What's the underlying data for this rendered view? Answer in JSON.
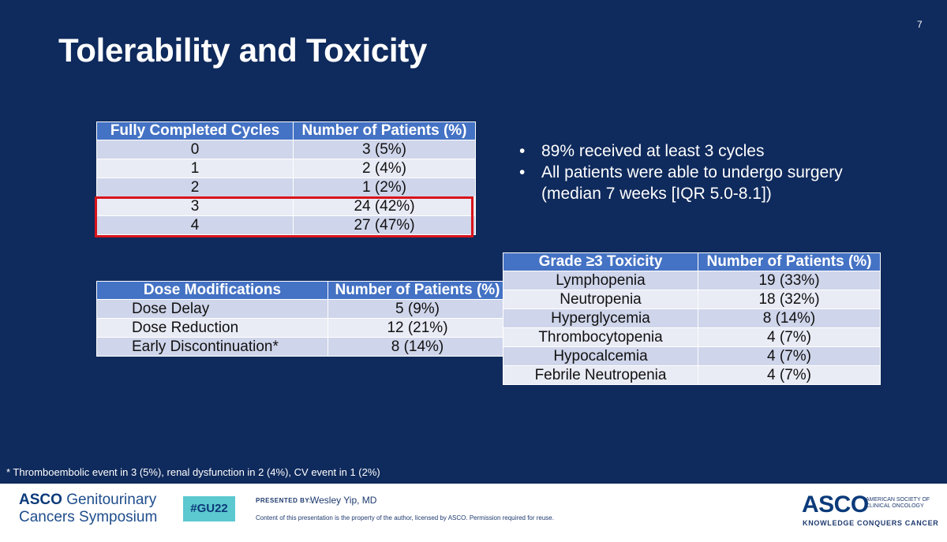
{
  "slide": {
    "number": "7",
    "title": "Tolerability and Toxicity"
  },
  "cycles_table": {
    "headers": [
      "Fully Completed Cycles",
      "Number of Patients (%)"
    ],
    "rows": [
      [
        "0",
        "3 (5%)"
      ],
      [
        "1",
        "2 (4%)"
      ],
      [
        "2",
        "1 (2%)"
      ],
      [
        "3",
        "24 (42%)"
      ],
      [
        "4",
        "27 (47%)"
      ]
    ]
  },
  "dose_table": {
    "headers": [
      "Dose Modifications",
      "Number of Patients (%)"
    ],
    "rows": [
      [
        "Dose Delay",
        "5 (9%)"
      ],
      [
        "Dose Reduction",
        "12 (21%)"
      ],
      [
        "Early Discontinuation*",
        "8 (14%)"
      ]
    ]
  },
  "toxicity_table": {
    "headers": [
      "Grade ≥3 Toxicity",
      "Number of Patients (%)"
    ],
    "rows": [
      [
        "Lymphopenia",
        "19 (33%)"
      ],
      [
        "Neutropenia",
        "18 (32%)"
      ],
      [
        "Hyperglycemia",
        "8 (14%)"
      ],
      [
        "Thrombocytopenia",
        "4 (7%)"
      ],
      [
        "Hypocalcemia",
        "4 (7%)"
      ],
      [
        "Febrile Neutropenia",
        "4 (7%)"
      ]
    ]
  },
  "bullets": {
    "marker": "•",
    "items": [
      "89% received at least 3 cycles",
      "All patients were able to undergo surgery (median 7 weeks [IQR 5.0-8.1])"
    ]
  },
  "footnote": "* Thromboembolic event in 3 (5%), renal dysfunction in 2 (4%), CV event in 1 (2%)",
  "footer": {
    "conference_asco": "ASCO",
    "conference_line1": "Genitourinary",
    "conference_line2": "Cancers Symposium",
    "hashtag": "#GU22",
    "presented_by": "PRESENTED BY:",
    "presenter": "Wesley Yip, MD",
    "disclaimer": "Content of this presentation is the property of the author, licensed by ASCO. Permission required for reuse.",
    "asco_logo": "ASCO",
    "asco_org_line1": "AMERICAN SOCIETY OF",
    "asco_org_line2": "CLINICAL ONCOLOGY",
    "tagline": "KNOWLEDGE CONQUERS CANCER"
  },
  "colors": {
    "background": "#0f2a5c",
    "table_header": "#4472c4",
    "row_dark": "#cfd5ea",
    "row_light": "#e9ebf5",
    "highlight": "#d9141b",
    "hashtag_bg": "#5cc8cf"
  }
}
